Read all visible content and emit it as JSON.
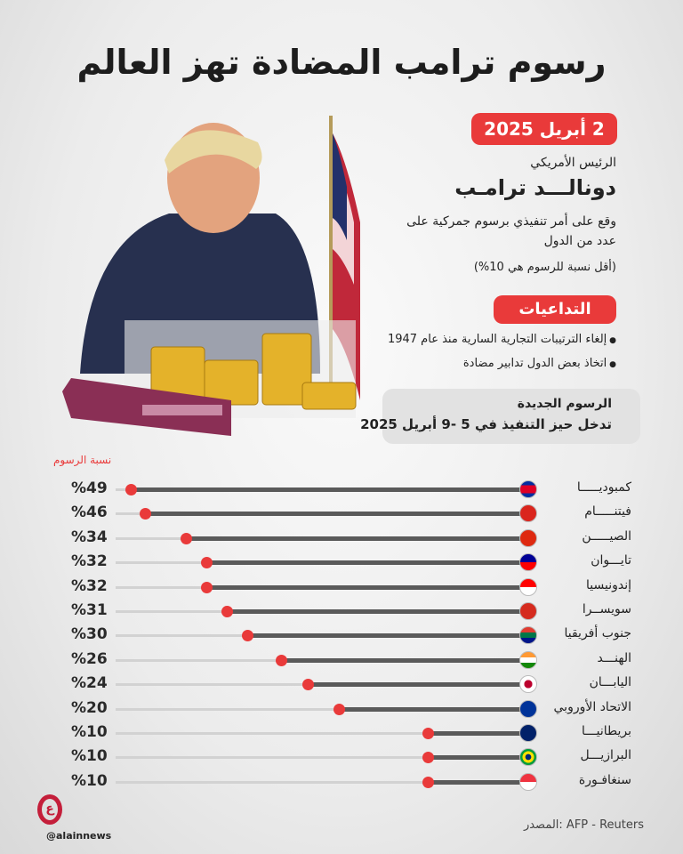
{
  "title": "رسوم ترامب المضادة تهز العالم",
  "info": {
    "date": "2 أبريل 2025",
    "role": "الرئيس الأمريكي",
    "name": "دونالـــد ترامـب",
    "description": "وقع على أمر تنفيذي برسوم جمركية على عدد من الدول",
    "min_rate": "(أقل نسبة للرسوم هي 10%)"
  },
  "consequences": {
    "title": "التداعيات",
    "items": [
      "إلغاء الترتيبات التجارية السارية منذ عام 1947",
      "اتخاذ بعض الدول تدابير مضادة"
    ]
  },
  "new_tariffs": {
    "title": "الرسوم الجديدة",
    "text": "تدخل حيز التنفيذ في 5 -9 أبريل 2025"
  },
  "chart_data": {
    "type": "lollipop",
    "ylabel": "نسبة الرسوم",
    "categories": [
      "كمبوديـــــا",
      "فيتنـــــام",
      "الصيـــــن",
      "تايـــوان",
      "إندونيسيا",
      "سويســرا",
      "جنوب أفريقيا",
      "الهنـــد",
      "اليابـــان",
      "الاتحاد الأوروبي",
      "بريطانيـــا",
      "البرازيـــل",
      "سنغافـورة"
    ],
    "values": [
      49,
      46,
      34,
      32,
      32,
      31,
      30,
      26,
      24,
      20,
      10,
      10,
      10
    ],
    "labels": [
      "%49",
      "%46",
      "%34",
      "%32",
      "%32",
      "%31",
      "%30",
      "%26",
      "%24",
      "%20",
      "%10",
      "%10",
      "%10"
    ],
    "flags": [
      "cambodia",
      "vietnam",
      "china",
      "taiwan",
      "indonesia",
      "switzerland",
      "south-africa",
      "india",
      "japan",
      "eu",
      "uk",
      "brazil",
      "singapore"
    ]
  },
  "colors": {
    "accent": "#e93a3a",
    "bar": "#5a5a5a"
  },
  "footer": {
    "source": "المصدر: AFP - Reuters",
    "handle": "@alainnews",
    "logo": "العين"
  }
}
